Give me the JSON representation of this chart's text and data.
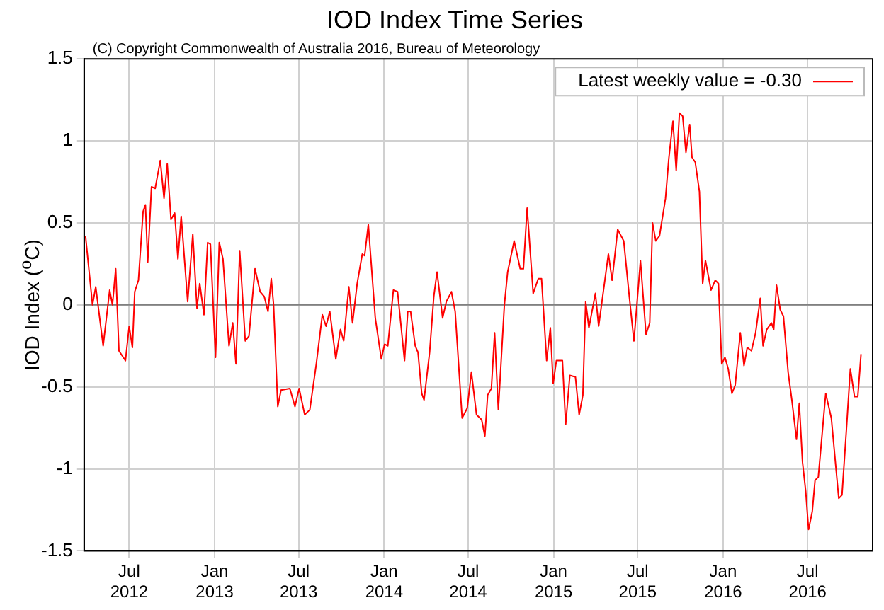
{
  "chart_data": {
    "type": "line",
    "title": "IOD Index Time Series",
    "ylabel": "IOD Index ($^{o}$C)",
    "annotations": [
      "(C) Copyright Commonwealth of Australia 2016, Bureau of Meteorology"
    ],
    "x": [
      "2012-03-29",
      "2012-04-13",
      "2012-04-20",
      "2012-05-06",
      "2012-05-20",
      "2012-05-26",
      "2012-06-02",
      "2012-06-09",
      "2012-06-23",
      "2012-07-01",
      "2012-07-08",
      "2012-07-13",
      "2012-07-21",
      "2012-07-31",
      "2012-08-05",
      "2012-08-10",
      "2012-08-18",
      "2012-08-26",
      "2012-09-06",
      "2012-09-14",
      "2012-09-21",
      "2012-09-29",
      "2012-10-07",
      "2012-10-14",
      "2012-10-21",
      "2012-11-04",
      "2012-11-15",
      "2012-11-24",
      "2012-11-30",
      "2012-12-09",
      "2012-12-17",
      "2012-12-23",
      "2013-01-03",
      "2013-01-11",
      "2013-01-19",
      "2013-02-01",
      "2013-02-09",
      "2013-02-16",
      "2013-02-24",
      "2013-03-08",
      "2013-03-16",
      "2013-03-29",
      "2013-04-09",
      "2013-04-18",
      "2013-04-26",
      "2013-05-03",
      "2013-05-08",
      "2013-05-17",
      "2013-05-24",
      "2013-06-12",
      "2013-06-23",
      "2013-07-02",
      "2013-07-14",
      "2013-07-25",
      "2013-08-08",
      "2013-08-21",
      "2013-08-29",
      "2013-09-06",
      "2013-09-19",
      "2013-09-29",
      "2013-10-06",
      "2013-10-17",
      "2013-10-25",
      "2013-11-04",
      "2013-11-15",
      "2013-11-20",
      "2013-11-28",
      "2013-12-13",
      "2013-12-26",
      "2014-01-02",
      "2014-01-09",
      "2014-01-21",
      "2014-01-30",
      "2014-02-14",
      "2014-02-21",
      "2014-02-27",
      "2014-03-09",
      "2014-03-15",
      "2014-03-23",
      "2014-03-28",
      "2014-04-09",
      "2014-04-18",
      "2014-04-25",
      "2014-05-07",
      "2014-05-15",
      "2014-05-26",
      "2014-06-03",
      "2014-06-18",
      "2014-06-29",
      "2014-07-08",
      "2014-07-19",
      "2014-07-30",
      "2014-08-06",
      "2014-08-12",
      "2014-08-20",
      "2014-08-27",
      "2014-09-04",
      "2014-09-17",
      "2014-09-24",
      "2014-10-08",
      "2014-10-21",
      "2014-10-28",
      "2014-11-05",
      "2014-11-18",
      "2014-11-29",
      "2014-12-06",
      "2014-12-17",
      "2014-12-25",
      "2014-12-31",
      "2015-01-07",
      "2015-01-20",
      "2015-01-27",
      "2015-02-05",
      "2015-02-17",
      "2015-02-25",
      "2015-03-05",
      "2015-03-11",
      "2015-03-18",
      "2015-04-01",
      "2015-04-08",
      "2015-04-18",
      "2015-04-29",
      "2015-05-07",
      "2015-05-19",
      "2015-06-01",
      "2015-06-13",
      "2015-06-23",
      "2015-07-07",
      "2015-07-19",
      "2015-07-27",
      "2015-08-02",
      "2015-08-09",
      "2015-08-17",
      "2015-08-30",
      "2015-09-06",
      "2015-09-15",
      "2015-09-22",
      "2015-09-29",
      "2015-10-06",
      "2015-10-13",
      "2015-10-21",
      "2015-10-26",
      "2015-11-02",
      "2015-11-11",
      "2015-11-18",
      "2015-11-24",
      "2015-12-06",
      "2015-12-15",
      "2015-12-22",
      "2015-12-29",
      "2016-01-05",
      "2016-01-12",
      "2016-01-20",
      "2016-01-27",
      "2016-02-07",
      "2016-02-15",
      "2016-02-22",
      "2016-03-02",
      "2016-03-11",
      "2016-03-21",
      "2016-03-27",
      "2016-04-04",
      "2016-04-14",
      "2016-04-19",
      "2016-04-25",
      "2016-05-03",
      "2016-05-10",
      "2016-05-20",
      "2016-05-28",
      "2016-06-07",
      "2016-06-13",
      "2016-06-20",
      "2016-06-27",
      "2016-07-03",
      "2016-07-11",
      "2016-07-17",
      "2016-07-24",
      "2016-08-09",
      "2016-08-21",
      "2016-09-06",
      "2016-09-13",
      "2016-09-23",
      "2016-10-01",
      "2016-10-10",
      "2016-10-17",
      "2016-10-24"
    ],
    "series": [
      {
        "name": "Latest weekly value = -0.30",
        "color": "#ff0000",
        "values": [
          0.42,
          0,
          0.11,
          -0.25,
          0.09,
          0,
          0.22,
          -0.28,
          -0.34,
          -0.13,
          -0.26,
          0.08,
          0.15,
          0.57,
          0.61,
          0.26,
          0.72,
          0.71,
          0.88,
          0.65,
          0.86,
          0.52,
          0.56,
          0.28,
          0.54,
          0.02,
          0.43,
          -0.02,
          0.13,
          -0.06,
          0.38,
          0.37,
          -0.32,
          0.38,
          0.28,
          -0.25,
          -0.11,
          -0.36,
          0.33,
          -0.22,
          -0.19,
          0.22,
          0.08,
          0.05,
          -0.04,
          0.16,
          0,
          -0.62,
          -0.52,
          -0.51,
          -0.62,
          -0.51,
          -0.67,
          -0.64,
          -0.36,
          -0.06,
          -0.13,
          -0.04,
          -0.33,
          -0.15,
          -0.22,
          0.11,
          -0.11,
          0.13,
          0.31,
          0.3,
          0.49,
          -0.08,
          -0.33,
          -0.24,
          -0.25,
          0.09,
          0.08,
          -0.34,
          -0.04,
          -0.04,
          -0.25,
          -0.29,
          -0.54,
          -0.58,
          -0.29,
          0.05,
          0.2,
          -0.08,
          0.02,
          0.08,
          -0.04,
          -0.69,
          -0.63,
          -0.41,
          -0.67,
          -0.7,
          -0.8,
          -0.55,
          -0.51,
          -0.17,
          -0.64,
          0,
          0.2,
          0.39,
          0.22,
          0.22,
          0.59,
          0.07,
          0.16,
          0.16,
          -0.34,
          -0.14,
          -0.48,
          -0.34,
          -0.34,
          -0.73,
          -0.43,
          -0.44,
          -0.67,
          -0.55,
          0.02,
          -0.14,
          0.07,
          -0.13,
          0.08,
          0.31,
          0.15,
          0.46,
          0.39,
          0.05,
          -0.22,
          0.27,
          -0.18,
          -0.11,
          0.5,
          0.39,
          0.42,
          0.65,
          0.89,
          1.12,
          0.82,
          1.17,
          1.15,
          0.93,
          1.1,
          0.9,
          0.87,
          0.69,
          0.13,
          0.27,
          0.09,
          0.15,
          0.13,
          -0.36,
          -0.32,
          -0.39,
          -0.54,
          -0.49,
          -0.17,
          -0.37,
          -0.26,
          -0.28,
          -0.17,
          0.04,
          -0.25,
          -0.15,
          -0.11,
          -0.15,
          0.12,
          -0.03,
          -0.07,
          -0.41,
          -0.58,
          -0.82,
          -0.6,
          -0.96,
          -1.14,
          -1.37,
          -1.26,
          -1.07,
          -1.05,
          -0.54,
          -0.69,
          -1.18,
          -1.16,
          -0.74,
          -0.39,
          -0.56,
          -0.56,
          -0.3
        ]
      }
    ],
    "xlim": [
      "2012-03-26",
      "2016-11-18"
    ],
    "xticks": [
      {
        "value": "2012-07-01",
        "label": "Jul 2012"
      },
      {
        "value": "2013-01-01",
        "label": "Jan 2013"
      },
      {
        "value": "2013-07-01",
        "label": "Jul 2013"
      },
      {
        "value": "2014-01-01",
        "label": "Jan 2014"
      },
      {
        "value": "2014-07-01",
        "label": "Jul 2014"
      },
      {
        "value": "2015-01-01",
        "label": "Jan 2015"
      },
      {
        "value": "2015-07-01",
        "label": "Jul 2015"
      },
      {
        "value": "2016-01-01",
        "label": "Jan 2016"
      },
      {
        "value": "2016-07-01",
        "label": "Jul 2016"
      }
    ],
    "ylim": [
      -1.5,
      1.5
    ],
    "yticks": [
      -1.5,
      -1,
      -0.5,
      0,
      0.5,
      1,
      1.5
    ],
    "ref_lines": [
      {
        "axis": "y",
        "value": 0,
        "color": "#808080"
      }
    ],
    "grid": true,
    "legend": "top right",
    "marker": "none",
    "line_style": "solid"
  }
}
